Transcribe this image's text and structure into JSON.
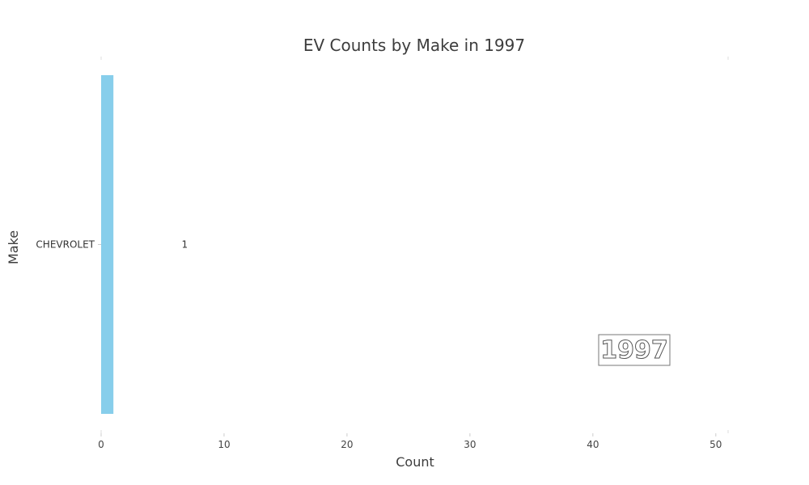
{
  "chart_data": {
    "type": "bar",
    "orientation": "horizontal",
    "title": "EV Counts by Make in 1997",
    "xlabel": "Count",
    "ylabel": "Make",
    "categories": [
      "CHEVROLET"
    ],
    "values": [
      1
    ],
    "data_labels": [
      "1"
    ],
    "xlim": [
      0,
      51
    ],
    "xticks": [
      0,
      10,
      20,
      30,
      40,
      50
    ],
    "xtick_labels": [
      "0",
      "10",
      "20",
      "30",
      "40",
      "50"
    ],
    "bar_color": "#87ceeb",
    "grid": false,
    "annotation": "1997"
  }
}
